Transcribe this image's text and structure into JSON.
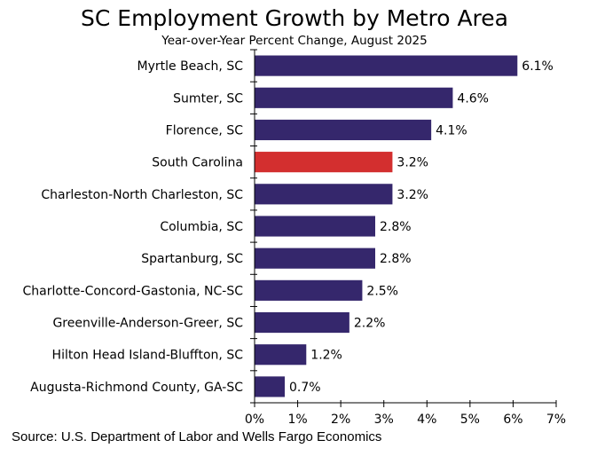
{
  "chart_data": {
    "type": "bar",
    "orientation": "horizontal",
    "title": "SC Employment Growth by Metro Area",
    "subtitle": "Year-over-Year Percent Change, August 2025",
    "source": "Source: U.S. Department of Labor and Wells Fargo Economics",
    "categories": [
      "Myrtle Beach, SC",
      "Sumter, SC",
      "Florence, SC",
      "South Carolina",
      "Charleston-North Charleston, SC",
      "Columbia, SC",
      "Spartanburg, SC",
      "Charlotte-Concord-Gastonia, NC-SC",
      "Greenville-Anderson-Greer, SC",
      "Hilton Head Island-Bluffton, SC",
      "Augusta-Richmond County, GA-SC"
    ],
    "values": [
      6.1,
      4.6,
      4.1,
      3.2,
      3.2,
      2.8,
      2.8,
      2.5,
      2.2,
      1.2,
      0.7
    ],
    "data_labels": [
      "6.1%",
      "4.6%",
      "4.1%",
      "3.2%",
      "3.2%",
      "2.8%",
      "2.8%",
      "2.5%",
      "2.2%",
      "1.2%",
      "0.7%"
    ],
    "highlight_category": "South Carolina",
    "colors": {
      "default": "#35276c",
      "highlight": "#d32f2f"
    },
    "xlim": [
      0,
      7
    ],
    "x_ticks": [
      0,
      1,
      2,
      3,
      4,
      5,
      6,
      7
    ],
    "x_tick_labels": [
      "0%",
      "1%",
      "2%",
      "3%",
      "4%",
      "5%",
      "6%",
      "7%"
    ],
    "xlabel": "",
    "ylabel": "",
    "grid": false,
    "legend": "none"
  }
}
